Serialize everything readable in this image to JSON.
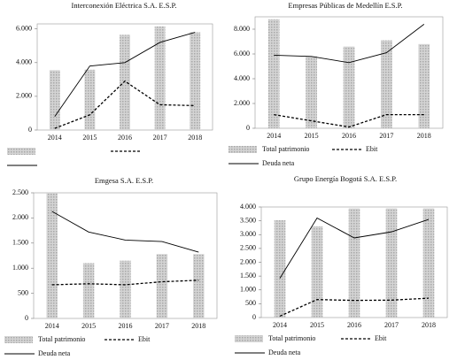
{
  "chart_data": [
    {
      "type": "bar",
      "title": "Interconexión Eléctrica S.A. E.S.P.",
      "categories": [
        "2014",
        "2015",
        "2016",
        "2017",
        "2018"
      ],
      "ylim": [
        0,
        6300
      ],
      "yticks": [
        0,
        {
          "value": 2000,
          "label": "2.000"
        },
        {
          "value": 4000,
          "label": "4.000"
        },
        {
          "value": 6000,
          "label": "6.000"
        }
      ],
      "series": [
        {
          "type": "bar",
          "color": "#b8b8b8",
          "values": [
            3550,
            3580,
            5650,
            6150,
            5800
          ]
        },
        {
          "type": "line",
          "color": "#000000",
          "dashed": true,
          "values": [
            100,
            900,
            2900,
            1500,
            1450
          ]
        },
        {
          "type": "line",
          "color": "#000000",
          "dashed": false,
          "values": [
            800,
            3800,
            4000,
            5200,
            5800
          ]
        }
      ]
    },
    {
      "type": "bar",
      "title": "Empresas Públicas de Medellín E.S.P.",
      "categories": [
        "2014",
        "2015",
        "2016",
        "2017",
        "2018"
      ],
      "ylim": [
        0,
        9000
      ],
      "yticks": [
        0,
        {
          "value": 2000,
          "label": "2.000"
        },
        {
          "value": 4000,
          "label": "4.000"
        },
        {
          "value": 6000,
          "label": "6.000"
        },
        {
          "value": 8000,
          "label": "8.000"
        }
      ],
      "series": [
        {
          "type": "bar",
          "name": "Total patrimonio",
          "color": "#b8b8b8",
          "values": [
            8800,
            5800,
            6600,
            7100,
            6800
          ]
        },
        {
          "type": "line",
          "name": "Ebit",
          "color": "#000000",
          "dashed": true,
          "values": [
            1100,
            600,
            100,
            1100,
            1100
          ]
        },
        {
          "type": "line",
          "name": "Deuda neta",
          "color": "#000000",
          "dashed": false,
          "values": [
            5900,
            5800,
            5300,
            6100,
            8400
          ]
        }
      ]
    },
    {
      "type": "bar",
      "title": "Emgesa S.A. E.S.P.",
      "categories": [
        "2014",
        "2015",
        "2016",
        "2017",
        "2018"
      ],
      "ylim": [
        0,
        2500
      ],
      "yticks": [
        0,
        500,
        {
          "value": 1000,
          "label": "1.000"
        },
        {
          "value": 1500,
          "label": "1.500"
        },
        {
          "value": 2000,
          "label": "2.000"
        },
        {
          "value": 2500,
          "label": "2.500"
        }
      ],
      "series": [
        {
          "type": "bar",
          "name": "Total patrimonio",
          "color": "#b8b8b8",
          "values": [
            2500,
            1100,
            1150,
            1280,
            1280
          ]
        },
        {
          "type": "line",
          "name": "Ebit",
          "color": "#000000",
          "dashed": true,
          "values": [
            670,
            690,
            670,
            730,
            760
          ]
        },
        {
          "type": "line",
          "name": "Deuda neta",
          "color": "#000000",
          "dashed": false,
          "values": [
            2130,
            1720,
            1560,
            1530,
            1320
          ]
        }
      ]
    },
    {
      "type": "bar",
      "title": "Grupo Energía Bogotá S.A. E.S.P.",
      "categories": [
        "2014",
        "2015",
        "2016",
        "2017",
        "2018"
      ],
      "ylim": [
        0,
        4000
      ],
      "yticks": [
        0,
        500,
        {
          "value": 1000,
          "label": "1.000"
        },
        {
          "value": 1500,
          "label": "1.500"
        },
        {
          "value": 2000,
          "label": "2.000"
        },
        {
          "value": 2500,
          "label": "2.500"
        },
        {
          "value": 3000,
          "label": "3.000"
        },
        {
          "value": 3500,
          "label": "3.500"
        },
        {
          "value": 4000,
          "label": "4.000"
        }
      ],
      "series": [
        {
          "type": "bar",
          "name": "Total patrimonio",
          "color": "#b8b8b8",
          "values": [
            3520,
            3300,
            3950,
            3950,
            3950
          ]
        },
        {
          "type": "line",
          "name": "Ebit",
          "color": "#000000",
          "dashed": true,
          "values": [
            50,
            650,
            620,
            630,
            700
          ]
        },
        {
          "type": "line",
          "name": "Deuda neta",
          "color": "#000000",
          "dashed": false,
          "values": [
            1420,
            3600,
            2880,
            3100,
            3550
          ]
        }
      ]
    }
  ]
}
